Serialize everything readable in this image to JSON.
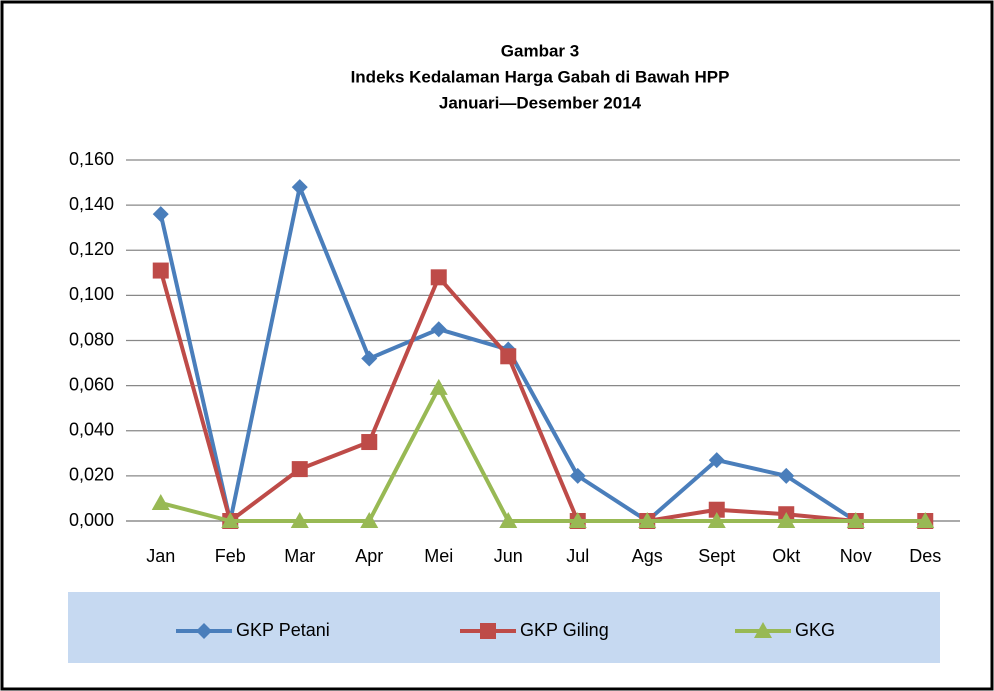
{
  "chart_data": {
    "type": "line",
    "title": "Gambar 3",
    "subtitle": [
      "Indeks Kedalaman Harga Gabah di Bawah HPP",
      "Januari—Desember 2014"
    ],
    "categories": [
      "Jan",
      "Feb",
      "Mar",
      "Apr",
      "Mei",
      "Jun",
      "Jul",
      "Ags",
      "Sept",
      "Okt",
      "Nov",
      "Des"
    ],
    "series": [
      {
        "name": "GKP Petani",
        "color": "#4a7ebb",
        "marker": "diamond",
        "values": [
          0.136,
          0,
          0.148,
          0.072,
          0.085,
          0.076,
          0.02,
          0,
          0.027,
          0.02,
          0,
          0
        ]
      },
      {
        "name": "GKP Giling",
        "color": "#be4b48",
        "marker": "square",
        "values": [
          0.111,
          0,
          0.023,
          0.035,
          0.108,
          0.073,
          0,
          0,
          0.005,
          0.003,
          0,
          0
        ]
      },
      {
        "name": "GKG",
        "color": "#98b954",
        "marker": "triangle",
        "values": [
          0.008,
          0,
          0,
          0,
          0.059,
          0,
          0,
          0,
          0,
          0,
          0,
          0
        ]
      }
    ],
    "ylim": [
      0,
      0.16
    ],
    "yticks": [
      {
        "value": 0,
        "label": "0,000"
      },
      {
        "value": 0.02,
        "label": "0,020"
      },
      {
        "value": 0.04,
        "label": "0,040"
      },
      {
        "value": 0.06,
        "label": "0,060"
      },
      {
        "value": 0.08,
        "label": "0,080"
      },
      {
        "value": 0.1,
        "label": "0,100"
      },
      {
        "value": 0.12,
        "label": "0,120"
      },
      {
        "value": 0.14,
        "label": "0,140"
      },
      {
        "value": 0.16,
        "label": "0,160"
      }
    ],
    "grid": true,
    "legend": "bottom"
  }
}
